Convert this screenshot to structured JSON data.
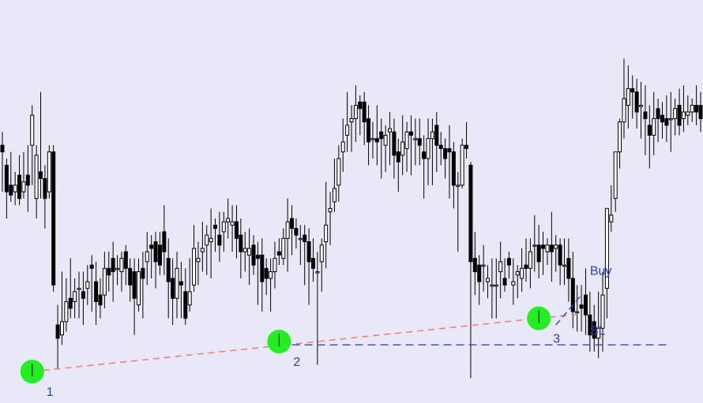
{
  "chart_data": {
    "type": "candlestick",
    "title": "",
    "xlabel": "",
    "ylabel": "",
    "grid": false,
    "ylim": [
      0,
      100
    ],
    "candles": [
      [
        72,
        70,
        76,
        58
      ],
      [
        66,
        58,
        68,
        50
      ],
      [
        60,
        57,
        70,
        55
      ],
      [
        58,
        60,
        64,
        54
      ],
      [
        63,
        56,
        69,
        54
      ],
      [
        58,
        61,
        70,
        56
      ],
      [
        63,
        60,
        72,
        52
      ],
      [
        72,
        81,
        84,
        60
      ],
      [
        56,
        69,
        72,
        50
      ],
      [
        64,
        62,
        88,
        56
      ],
      [
        62,
        56,
        66,
        47
      ],
      [
        58,
        70,
        72,
        56
      ],
      [
        70,
        30,
        72,
        28
      ],
      [
        18,
        14,
        24,
        5
      ],
      [
        15,
        19,
        34,
        12
      ],
      [
        19,
        25,
        32,
        16
      ],
      [
        26,
        23,
        38,
        20
      ],
      [
        25,
        28,
        32,
        20
      ],
      [
        29,
        29,
        34,
        20
      ],
      [
        28,
        26,
        34,
        18
      ],
      [
        29,
        31,
        36,
        24
      ],
      [
        36,
        35,
        39,
        22
      ],
      [
        31,
        25,
        37,
        18
      ],
      [
        27,
        24,
        32,
        20
      ],
      [
        27,
        35,
        40,
        23
      ],
      [
        35,
        33,
        40,
        28
      ],
      [
        38,
        34,
        43,
        25
      ],
      [
        35,
        35,
        39,
        30
      ],
      [
        34,
        38,
        40,
        28
      ],
      [
        40,
        35,
        42,
        30
      ],
      [
        35,
        30,
        38,
        25
      ],
      [
        34,
        26,
        38,
        15
      ],
      [
        24,
        34,
        38,
        22
      ],
      [
        35,
        32,
        40,
        20
      ],
      [
        37,
        40,
        46,
        30
      ],
      [
        42,
        41,
        45,
        32
      ],
      [
        43,
        37,
        46,
        29
      ],
      [
        42,
        36,
        46,
        33
      ],
      [
        46,
        40,
        54,
        33
      ],
      [
        38,
        31,
        44,
        20
      ],
      [
        32,
        26,
        38,
        18
      ],
      [
        26,
        35,
        40,
        20
      ],
      [
        31,
        30,
        37,
        20
      ],
      [
        28,
        20,
        35,
        18
      ],
      [
        24,
        28,
        38,
        22
      ],
      [
        30,
        41,
        48,
        28
      ],
      [
        37,
        38,
        43,
        30
      ],
      [
        40,
        41,
        49,
        34
      ],
      [
        42,
        45,
        48,
        33
      ],
      [
        43,
        44,
        53,
        32
      ],
      [
        48,
        47,
        50,
        40
      ],
      [
        45,
        42,
        52,
        37
      ],
      [
        46,
        49,
        52,
        40
      ],
      [
        49,
        50,
        56,
        44
      ],
      [
        48,
        49,
        54,
        40
      ],
      [
        49,
        44,
        54,
        38
      ],
      [
        45,
        40,
        50,
        32
      ],
      [
        40,
        41,
        46,
        34
      ],
      [
        39,
        41,
        47,
        30
      ],
      [
        42,
        36,
        45,
        33
      ],
      [
        39,
        38,
        43,
        24
      ],
      [
        39,
        31,
        44,
        22
      ],
      [
        35,
        32,
        38,
        27
      ],
      [
        32,
        34,
        38,
        22
      ],
      [
        34,
        38,
        43,
        29
      ],
      [
        40,
        39,
        44,
        36
      ],
      [
        38,
        44,
        47,
        36
      ],
      [
        44,
        49,
        56,
        34
      ],
      [
        50,
        47,
        54,
        39
      ],
      [
        47,
        45,
        50,
        41
      ],
      [
        44,
        44,
        48,
        36
      ],
      [
        45,
        43,
        48,
        30
      ],
      [
        43,
        37,
        47,
        24
      ],
      [
        38,
        35,
        44,
        31
      ],
      [
        34,
        34,
        40,
        6
      ],
      [
        37,
        42,
        44,
        28
      ],
      [
        43,
        48,
        61,
        35
      ],
      [
        52,
        53,
        58,
        42
      ],
      [
        55,
        59,
        68,
        52
      ],
      [
        60,
        68,
        72,
        55
      ],
      [
        70,
        73,
        80,
        64
      ],
      [
        75,
        78,
        88,
        70
      ],
      [
        79,
        80,
        84,
        70
      ],
      [
        80,
        84,
        90,
        73
      ],
      [
        85,
        83,
        87,
        75
      ],
      [
        85,
        79,
        88,
        72
      ],
      [
        80,
        73,
        84,
        66
      ],
      [
        74,
        74,
        79,
        68
      ],
      [
        74,
        73,
        84,
        66
      ],
      [
        76,
        74,
        80,
        62
      ],
      [
        72,
        75,
        78,
        64
      ],
      [
        76,
        77,
        82,
        66
      ],
      [
        76,
        69,
        80,
        62
      ],
      [
        70,
        67,
        74,
        58
      ],
      [
        69,
        73,
        81,
        63
      ],
      [
        71,
        76,
        79,
        64
      ],
      [
        76,
        75,
        81,
        63
      ],
      [
        74,
        74,
        80,
        66
      ],
      [
        74,
        72,
        80,
        66
      ],
      [
        70,
        68,
        75,
        56
      ],
      [
        68,
        74,
        80,
        60
      ],
      [
        74,
        76,
        80,
        60
      ],
      [
        78,
        72,
        82,
        64
      ],
      [
        72,
        71,
        76,
        66
      ],
      [
        71,
        68,
        74,
        62
      ],
      [
        71,
        70,
        78,
        56
      ],
      [
        70,
        60,
        73,
        53
      ],
      [
        60,
        60,
        64,
        40
      ],
      [
        60,
        72,
        74,
        59
      ],
      [
        72,
        71,
        79,
        68
      ],
      [
        66,
        37,
        67,
        2
      ],
      [
        38,
        34,
        46,
        27
      ],
      [
        36,
        31,
        39,
        24
      ],
      [
        36,
        36,
        42,
        28
      ],
      [
        31,
        32,
        36,
        26
      ],
      [
        30,
        30,
        38,
        20
      ],
      [
        30,
        30,
        38,
        20
      ],
      [
        34,
        37,
        43,
        26
      ],
      [
        32,
        30,
        38,
        28
      ],
      [
        38,
        36,
        40,
        32
      ],
      [
        30,
        31,
        38,
        24
      ],
      [
        33,
        34,
        36,
        26
      ],
      [
        32,
        35,
        41,
        28
      ],
      [
        36,
        35,
        44,
        31
      ],
      [
        35,
        40,
        44,
        29
      ],
      [
        42,
        42,
        51,
        34
      ],
      [
        42,
        37,
        48,
        32
      ],
      [
        42,
        41,
        46,
        33
      ],
      [
        40,
        42,
        44,
        36
      ],
      [
        42,
        40,
        52,
        31
      ],
      [
        41,
        42,
        45,
        34
      ],
      [
        42,
        36,
        44,
        30
      ],
      [
        36,
        36,
        44,
        30
      ],
      [
        38,
        32,
        44,
        25
      ],
      [
        32,
        22,
        40,
        17
      ],
      [
        22,
        22,
        30,
        16
      ],
      [
        24,
        23,
        30,
        16
      ],
      [
        27,
        21,
        35,
        15
      ],
      [
        21,
        15,
        28,
        10
      ],
      [
        19,
        14,
        24,
        10
      ],
      [
        14,
        17,
        28,
        8
      ],
      [
        17,
        27,
        34,
        10
      ],
      [
        29,
        53,
        51,
        20
      ],
      [
        49,
        51,
        60,
        46
      ],
      [
        56,
        70,
        68,
        52
      ],
      [
        70,
        79,
        80,
        65
      ],
      [
        79,
        86,
        98,
        74
      ],
      [
        84,
        89,
        96,
        77
      ],
      [
        89,
        88,
        93,
        80
      ],
      [
        88,
        82,
        92,
        77
      ],
      [
        84,
        84,
        91,
        74
      ],
      [
        82,
        80,
        90,
        69
      ],
      [
        78,
        75,
        84,
        65
      ],
      [
        75,
        80,
        88,
        69
      ],
      [
        83,
        80,
        86,
        73
      ],
      [
        81,
        79,
        85,
        74
      ],
      [
        80,
        78,
        87,
        73
      ],
      [
        80,
        80,
        88,
        70
      ],
      [
        80,
        83,
        86,
        75
      ],
      [
        84,
        78,
        89,
        75
      ],
      [
        80,
        82,
        90,
        76
      ],
      [
        81,
        82,
        87,
        78
      ],
      [
        82,
        84,
        86,
        79
      ],
      [
        84,
        82,
        90,
        78
      ],
      [
        84,
        80,
        88,
        76
      ]
    ],
    "trendline": {
      "from_candle": 7,
      "from_value": 4,
      "to_candle": 126,
      "to_value": 20,
      "style": "dashed",
      "color": "#f08080"
    },
    "sl_line": {
      "from_candle": 68,
      "to_candle": 156,
      "value": 12,
      "style": "dashed",
      "color": "#3344cc"
    },
    "buy_line": {
      "from_candle": 130,
      "from_value": 18,
      "to_candle": 136,
      "to_value": 27,
      "style": "dashed",
      "color": "#3344cc"
    },
    "touch_points": [
      {
        "label": "1",
        "candle": 7,
        "value": 4
      },
      {
        "label": "2",
        "candle": 65,
        "value": 13
      },
      {
        "label": "3",
        "candle": 126,
        "value": 20
      }
    ],
    "annotations": [
      {
        "text": "Buy",
        "candle": 138,
        "value": 33
      },
      {
        "text": "SL",
        "candle": 138,
        "value": 15
      }
    ],
    "colors": {
      "background": "#e8e8f6",
      "candle": "#000000",
      "up_fill": "#ffffff",
      "touch_point": "#22ee22",
      "label": "#2a3fc0"
    }
  }
}
